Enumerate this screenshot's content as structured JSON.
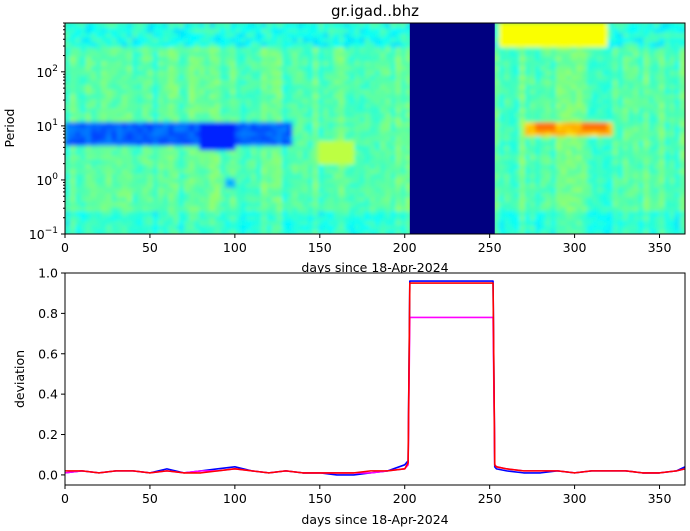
{
  "figure_title": "gr.igad..bhz",
  "chart_data": [
    {
      "type": "heatmap",
      "title": "gr.igad..bhz",
      "xlabel": "days since 18-Apr-2024",
      "ylabel": "Period",
      "xlim": [
        0,
        365
      ],
      "x_ticks": [
        0,
        50,
        100,
        150,
        200,
        250,
        300,
        350
      ],
      "y_scale": "log",
      "ylim": [
        0.1,
        800
      ],
      "y_ticks": [
        {
          "value": 0.1,
          "base": "10",
          "exp": "−1"
        },
        {
          "value": 1,
          "base": "10",
          "exp": "0"
        },
        {
          "value": 10,
          "base": "10",
          "exp": "1"
        },
        {
          "value": 100,
          "base": "10",
          "exp": "2"
        }
      ],
      "colormap": "jet",
      "regions": [
        {
          "label": "data gap (saturated dark blue)",
          "x_start": 203,
          "x_end": 253
        }
      ],
      "features": [
        {
          "label": "low-value band (blue) near period 5–10 s",
          "x_start": 0,
          "x_end": 135
        },
        {
          "label": "high-value spots (yellow/orange) near period 10 s",
          "x_start": 278,
          "x_end": 320
        }
      ]
    },
    {
      "type": "line",
      "title": "",
      "xlabel": "days since 18-Apr-2024",
      "ylabel": "deviation",
      "xlim": [
        0,
        365
      ],
      "ylim": [
        -0.05,
        1.0
      ],
      "x_ticks": [
        0,
        50,
        100,
        150,
        200,
        250,
        300,
        350
      ],
      "y_ticks": [
        0.0,
        0.2,
        0.4,
        0.6,
        0.8,
        1.0
      ],
      "x": [
        0,
        10,
        20,
        30,
        40,
        50,
        60,
        70,
        80,
        90,
        100,
        110,
        120,
        130,
        140,
        150,
        160,
        170,
        180,
        190,
        200,
        202,
        203,
        204,
        252,
        253,
        254,
        260,
        270,
        280,
        290,
        300,
        310,
        320,
        330,
        340,
        350,
        360,
        365
      ],
      "series": [
        {
          "color": "#0000ff",
          "values": [
            0.01,
            0.02,
            0.01,
            0.02,
            0.02,
            0.01,
            0.03,
            0.01,
            0.02,
            0.03,
            0.04,
            0.02,
            0.01,
            0.02,
            0.01,
            0.01,
            0.0,
            0.0,
            0.01,
            0.02,
            0.05,
            0.07,
            0.96,
            0.96,
            0.96,
            0.04,
            0.03,
            0.02,
            0.01,
            0.01,
            0.02,
            0.01,
            0.02,
            0.02,
            0.02,
            0.01,
            0.01,
            0.02,
            0.04
          ]
        },
        {
          "color": "#ff00ff",
          "values": [
            0.01,
            0.02,
            0.01,
            0.02,
            0.02,
            0.01,
            0.02,
            0.01,
            0.02,
            0.02,
            0.03,
            0.02,
            0.01,
            0.02,
            0.01,
            0.01,
            0.01,
            0.01,
            0.01,
            0.02,
            0.03,
            0.05,
            0.78,
            0.78,
            0.78,
            0.05,
            0.04,
            0.03,
            0.02,
            0.02,
            0.02,
            0.01,
            0.02,
            0.02,
            0.02,
            0.01,
            0.01,
            0.02,
            0.03
          ]
        },
        {
          "color": "#ff0000",
          "values": [
            0.02,
            0.02,
            0.01,
            0.02,
            0.02,
            0.01,
            0.02,
            0.01,
            0.01,
            0.02,
            0.03,
            0.02,
            0.01,
            0.02,
            0.01,
            0.01,
            0.01,
            0.01,
            0.02,
            0.02,
            0.03,
            0.06,
            0.95,
            0.95,
            0.95,
            0.05,
            0.04,
            0.03,
            0.02,
            0.02,
            0.02,
            0.01,
            0.02,
            0.02,
            0.02,
            0.01,
            0.01,
            0.02,
            0.03
          ]
        }
      ],
      "legend": "none",
      "grid": false
    }
  ]
}
